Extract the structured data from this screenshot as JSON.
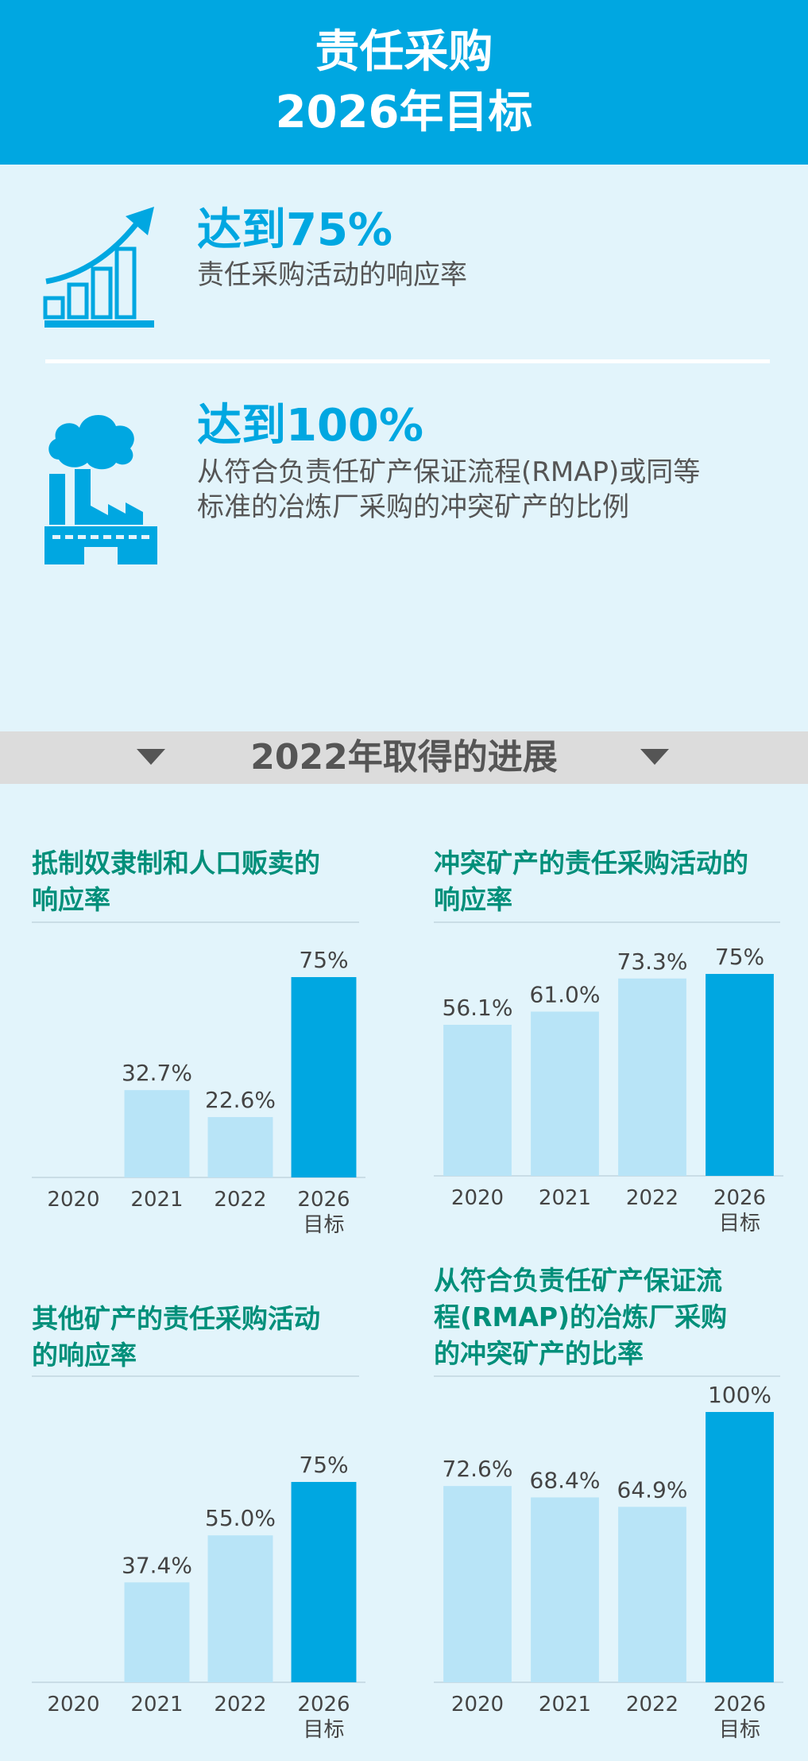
{
  "header": {
    "line1": "责任采购",
    "line2": "2026年目标"
  },
  "targets": [
    {
      "value": "达到75%",
      "desc": "责任采购活动的响应率",
      "icon": "growth-bar-chart-icon"
    },
    {
      "value": "达到100%",
      "desc_line1": "从符合负责任矿产保证流程(RMAP)或同等",
      "desc_line2": "标准的冶炼厂采购的冲突矿产的比例",
      "icon": "factory-icon"
    }
  ],
  "progress": {
    "title": "2022年取得的进展"
  },
  "colors": {
    "header": "#00a7e1",
    "bar_history": "#b8e4f7",
    "bar_target": "#00a7e1",
    "chart_title": "#008f7a",
    "background": "#e2f4fb"
  },
  "chart_data": [
    {
      "type": "bar",
      "title": "抵制奴隶制和人口贩卖的响应率",
      "title_line1": "抵制奴隶制和人口贩卖的",
      "title_line2": "响应率",
      "categories": [
        "2020",
        "2021",
        "2022",
        "2026\n目标"
      ],
      "values": [
        null,
        32.7,
        22.6,
        75
      ],
      "labels": [
        "",
        "32.7%",
        "22.6%",
        "75%"
      ],
      "highlight_index": 3,
      "ylim": [
        0,
        75
      ]
    },
    {
      "type": "bar",
      "title": "冲突矿产的责任采购活动的响应率",
      "title_line1": "冲突矿产的责任采购活动的",
      "title_line2": "响应率",
      "categories": [
        "2020",
        "2021",
        "2022",
        "2026\n目标"
      ],
      "values": [
        56.1,
        61.0,
        73.3,
        75
      ],
      "labels": [
        "56.1%",
        "61.0%",
        "73.3%",
        "75%"
      ],
      "highlight_index": 3,
      "ylim": [
        0,
        75
      ]
    },
    {
      "type": "bar",
      "title": "其他矿产的责任采购活动的响应率",
      "title_line1": "其他矿产的责任采购活动",
      "title_line2": "的响应率",
      "categories": [
        "2020",
        "2021",
        "2022",
        "2026\n目标"
      ],
      "values": [
        null,
        37.4,
        55.0,
        75
      ],
      "labels": [
        "",
        "37.4%",
        "55.0%",
        "75%"
      ],
      "highlight_index": 3,
      "ylim": [
        0,
        75
      ]
    },
    {
      "type": "bar",
      "title": "从符合负责任矿产保证流程(RMAP)的冶炼厂采购的冲突矿产的比率",
      "title_line1": "从符合负责任矿产保证流",
      "title_line2": "程(RMAP)的冶炼厂采购",
      "title_line3": "的冲突矿产的比率",
      "categories": [
        "2020",
        "2021",
        "2022",
        "2026\n目标"
      ],
      "values": [
        72.6,
        68.4,
        64.9,
        100
      ],
      "labels": [
        "72.6%",
        "68.4%",
        "64.9%",
        "100%"
      ],
      "highlight_index": 3,
      "ylim": [
        0,
        100
      ]
    }
  ]
}
